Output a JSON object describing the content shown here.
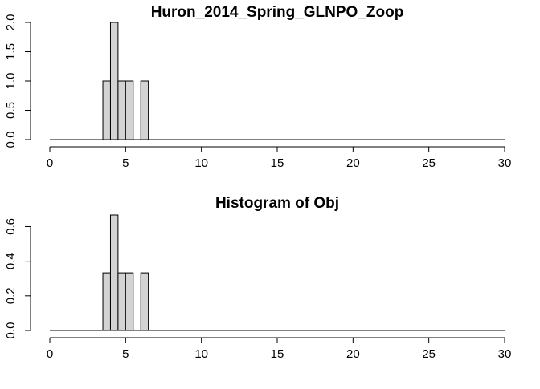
{
  "chart_data": [
    {
      "type": "bar",
      "title": "Huron_2014_Spring_GLNPO_Zoop",
      "xlabel": "",
      "ylabel": "",
      "bin_width": 0.5,
      "bins": [
        {
          "x0": 3.5,
          "x1": 4.0,
          "value": 1
        },
        {
          "x0": 4.0,
          "x1": 4.5,
          "value": 2
        },
        {
          "x0": 4.5,
          "x1": 5.0,
          "value": 1
        },
        {
          "x0": 5.0,
          "x1": 5.5,
          "value": 1
        },
        {
          "x0": 6.0,
          "x1": 6.5,
          "value": 1
        }
      ],
      "xlim": [
        0,
        30
      ],
      "ylim": [
        0,
        2
      ],
      "x_ticks": [
        0,
        5,
        10,
        15,
        20,
        25,
        30
      ],
      "x_tick_labels": [
        "0",
        "5",
        "10",
        "15",
        "20",
        "25",
        "30"
      ],
      "y_ticks": [
        0,
        0.5,
        1,
        1.5,
        2
      ],
      "y_tick_labels": [
        "0.0",
        "0.5",
        "1.0",
        "1.5",
        "2.0"
      ],
      "grid": false,
      "bar_fill": "#d3d3d3",
      "bar_stroke": "#000000"
    },
    {
      "type": "bar",
      "title": "Histogram of Obj",
      "xlabel": "",
      "ylabel": "",
      "bin_width": 0.5,
      "bins": [
        {
          "x0": 3.5,
          "x1": 4.0,
          "value": 0.333
        },
        {
          "x0": 4.0,
          "x1": 4.5,
          "value": 0.667
        },
        {
          "x0": 4.5,
          "x1": 5.0,
          "value": 0.333
        },
        {
          "x0": 5.0,
          "x1": 5.5,
          "value": 0.333
        },
        {
          "x0": 6.0,
          "x1": 6.5,
          "value": 0.333
        }
      ],
      "xlim": [
        0,
        30
      ],
      "ylim": [
        0,
        0.667
      ],
      "x_ticks": [
        0,
        5,
        10,
        15,
        20,
        25,
        30
      ],
      "x_tick_labels": [
        "0",
        "5",
        "10",
        "15",
        "20",
        "25",
        "30"
      ],
      "y_ticks": [
        0,
        0.2,
        0.4,
        0.6
      ],
      "y_tick_labels": [
        "0.0",
        "0.2",
        "0.4",
        "0.6"
      ],
      "grid": false,
      "bar_fill": "#d3d3d3",
      "bar_stroke": "#000000"
    }
  ]
}
